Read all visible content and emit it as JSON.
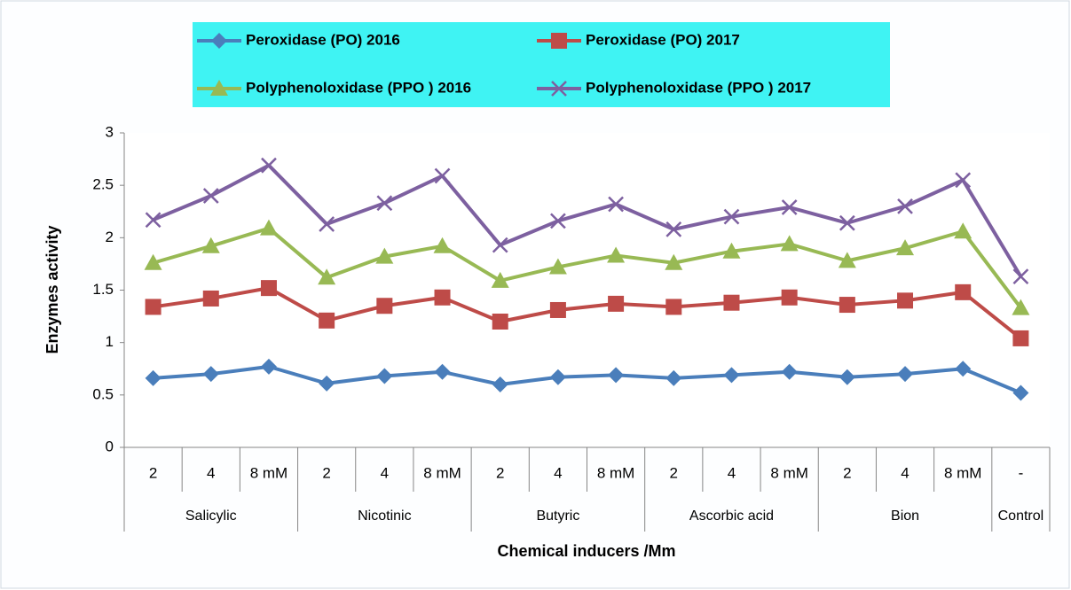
{
  "chart_data": {
    "type": "line",
    "ylabel": "Enzymes activity",
    "xlabel": "Chemical inducers /Mm",
    "groups": [
      {
        "name": "Salicylic",
        "categories": [
          "2",
          "4",
          "8 mM"
        ]
      },
      {
        "name": "Nicotinic",
        "categories": [
          "2",
          "4",
          "8 mM"
        ]
      },
      {
        "name": "Butyric",
        "categories": [
          "2",
          "4",
          "8 mM"
        ]
      },
      {
        "name": "Ascorbic acid",
        "categories": [
          "2",
          "4",
          "8 mM"
        ]
      },
      {
        "name": "Bion",
        "categories": [
          "2",
          "4",
          "8 mM"
        ]
      },
      {
        "name": "Control",
        "categories": [
          "-"
        ]
      }
    ],
    "ylim": [
      0,
      3
    ],
    "yticks": [
      0,
      0.5,
      1,
      1.5,
      2,
      2.5,
      3
    ],
    "series": [
      {
        "name": "Peroxidase (PO) 2016",
        "color": "#4a7ebb",
        "marker": "diamond",
        "values": [
          0.66,
          0.7,
          0.77,
          0.61,
          0.68,
          0.72,
          0.6,
          0.67,
          0.69,
          0.66,
          0.69,
          0.72,
          0.67,
          0.7,
          0.75,
          0.52
        ]
      },
      {
        "name": "Peroxidase (PO) 2017",
        "color": "#be4b48",
        "marker": "square",
        "values": [
          1.34,
          1.42,
          1.52,
          1.21,
          1.35,
          1.43,
          1.2,
          1.31,
          1.37,
          1.34,
          1.38,
          1.43,
          1.36,
          1.4,
          1.48,
          1.04
        ]
      },
      {
        "name": "Polyphenoloxidase (PPO ) 2016",
        "color": "#98b954",
        "marker": "triangle",
        "values": [
          1.76,
          1.92,
          2.09,
          1.62,
          1.82,
          1.92,
          1.59,
          1.72,
          1.83,
          1.76,
          1.87,
          1.94,
          1.78,
          1.9,
          2.06,
          1.33
        ]
      },
      {
        "name": "Polyphenoloxidase (PPO ) 2017",
        "color": "#7d60a0",
        "marker": "x",
        "values": [
          2.17,
          2.4,
          2.69,
          2.13,
          2.33,
          2.59,
          1.93,
          2.16,
          2.32,
          2.08,
          2.2,
          2.29,
          2.14,
          2.3,
          2.55,
          1.63
        ]
      }
    ]
  }
}
